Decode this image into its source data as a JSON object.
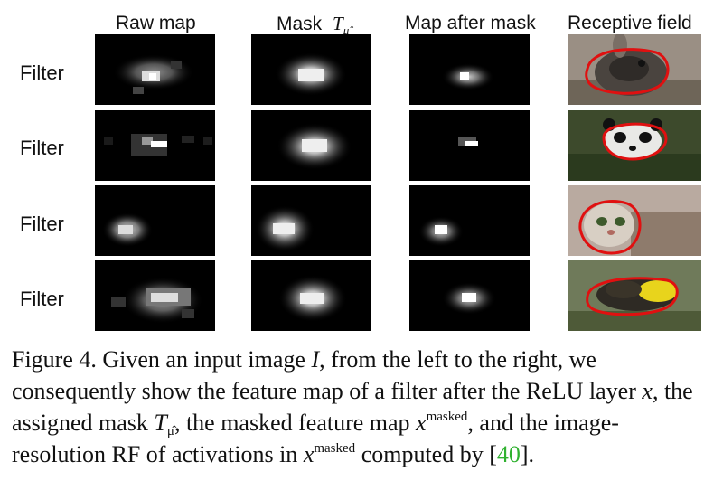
{
  "figure": {
    "columns": {
      "raw": "Raw map",
      "mask": "Mask",
      "mask_symbol": "T",
      "mask_sub": "μ̂",
      "after": "Map after mask",
      "rf": "Receptive field"
    },
    "rows": [
      {
        "label": "Filter"
      },
      {
        "label": "Filter"
      },
      {
        "label": "Filter"
      },
      {
        "label": "Filter"
      }
    ],
    "caption": {
      "p1": "Figure 4. Given an input image ",
      "v_I": "I",
      "p2": ", from the left to the right, we consequently show the feature map of a filter after the ReLU layer ",
      "v_x": "x",
      "p3": ", the assigned mask ",
      "v_T": "T",
      "v_T_sub": "μ̂",
      "p4": ", the masked feature map ",
      "v_x2": "x",
      "sup1": "masked",
      "p5": ", and the image-resolution RF of activations in ",
      "v_x3": "x",
      "sup2": "masked",
      "p6": " computed by [",
      "cite": "40",
      "p7": "]."
    }
  }
}
